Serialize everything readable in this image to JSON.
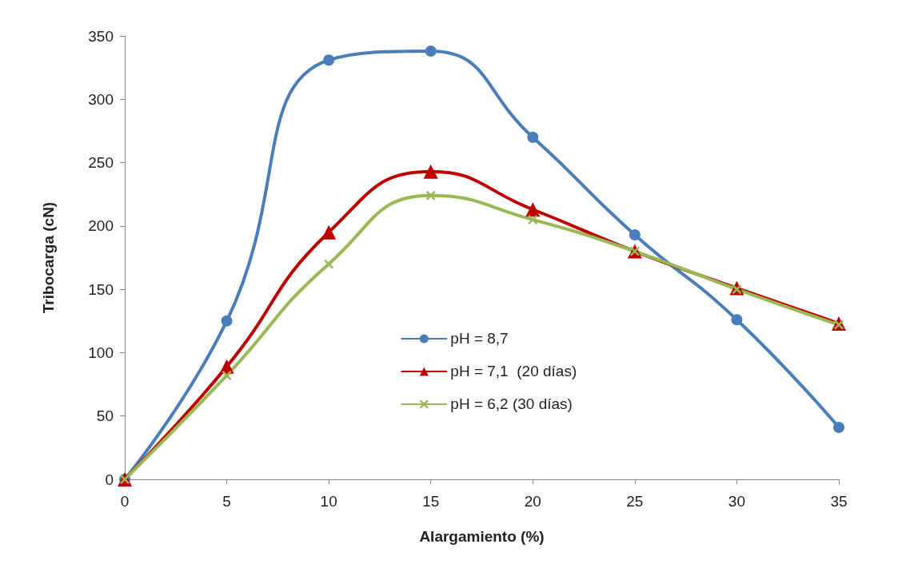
{
  "chart_data": {
    "type": "line",
    "xlabel": "Alargamiento (%)",
    "ylabel": "Tribocarga (cN)",
    "x": [
      0,
      5,
      10,
      15,
      20,
      25,
      30,
      35
    ],
    "xlim": [
      0,
      35
    ],
    "xticks": [
      0,
      5,
      10,
      15,
      20,
      25,
      30,
      35
    ],
    "ylim": [
      0,
      350
    ],
    "yticks": [
      0,
      50,
      100,
      150,
      200,
      250,
      300,
      350
    ],
    "grid": false,
    "legend": "bottom",
    "line_style": "solid",
    "series": [
      {
        "name": "pH = 8,7",
        "color": "#4a7ebb",
        "marker": "circle",
        "values": [
          0,
          125,
          331,
          338,
          270,
          193,
          126,
          41
        ]
      },
      {
        "name": "pH = 7,1  (20 días)",
        "color": "#c00000",
        "marker": "triangle",
        "values": [
          0,
          89,
          195,
          243,
          213,
          180,
          151,
          123
        ]
      },
      {
        "name": "pH = 6,2 (30 días)",
        "color": "#98b954",
        "marker": "cross",
        "values": [
          0,
          82,
          170,
          224,
          205,
          180,
          150,
          122
        ]
      }
    ]
  }
}
